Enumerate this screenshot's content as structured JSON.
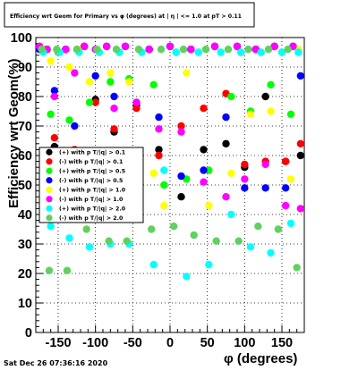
{
  "title": "Efficiency wrt Geom for Primary vs φ (degrees) at | η | <= 1.0 at pT > 0.11",
  "timestamp": "Sat Dec 26 07:36:16 2020",
  "chart_data": {
    "type": "scatter",
    "title": "Efficiency wrt Geom for Primary vs φ (degrees) at | η | <= 1.0 at pT > 0.11",
    "xlabel": "φ (degrees)",
    "ylabel": "Efficiency wrt Geom(%)",
    "xlim": [
      -180,
      180
    ],
    "ylim": [
      0,
      100
    ],
    "xticks": [
      -150,
      -100,
      -50,
      0,
      50,
      100,
      150
    ],
    "xtick_labels": [
      "-150",
      "-100",
      "-50",
      "0",
      "50",
      "100",
      "150"
    ],
    "yticks": [
      0,
      10,
      20,
      30,
      40,
      50,
      60,
      70,
      80,
      90,
      100
    ],
    "ytick_labels": [
      "0",
      "10",
      "20",
      "30",
      "40",
      "50",
      "60",
      "70",
      "80",
      "90",
      "100"
    ],
    "grid": true,
    "legend_position": "left-middle",
    "series": [
      {
        "name": "(+) with p T/|q| > 0.1",
        "color": "#000000",
        "x": [
          -175,
          -165,
          -155,
          -140,
          -128,
          -115,
          -100,
          -85,
          -75,
          -60,
          -45,
          -28,
          -15,
          0,
          15,
          28,
          45,
          60,
          75,
          90,
          100,
          115,
          128,
          140,
          155,
          165,
          175
        ],
        "y": [
          97,
          96,
          63,
          96,
          58,
          97,
          79,
          97,
          68,
          97,
          77,
          96,
          62,
          97,
          46,
          96,
          62,
          97,
          64,
          97,
          56,
          96,
          80,
          97,
          58,
          97,
          60
        ]
      },
      {
        "name": "(-) with p T/|q| > 0.1",
        "color": "#ff0000",
        "x": [
          -175,
          -165,
          -155,
          -140,
          -128,
          -115,
          -100,
          -85,
          -75,
          -60,
          -45,
          -28,
          -15,
          0,
          15,
          28,
          45,
          60,
          75,
          90,
          100,
          115,
          128,
          140,
          155,
          165,
          175
        ],
        "y": [
          97,
          96,
          66,
          96,
          62,
          97,
          78,
          97,
          69,
          97,
          76,
          96,
          60,
          97,
          70,
          96,
          76,
          97,
          81,
          97,
          57,
          96,
          58,
          97,
          58,
          97,
          64
        ]
      },
      {
        "name": "(+) with p T/|q| > 0.5",
        "color": "#00ff00",
        "x": [
          -170,
          -160,
          -150,
          -135,
          -122,
          -108,
          -95,
          -80,
          -68,
          -55,
          -38,
          -22,
          -8,
          8,
          22,
          38,
          52,
          68,
          82,
          95,
          108,
          122,
          135,
          150,
          162,
          172
        ],
        "y": [
          96,
          74,
          95,
          72,
          96,
          78,
          95,
          85,
          95,
          86,
          95,
          84,
          50,
          95,
          52,
          95,
          55,
          95,
          80,
          95,
          75,
          95,
          84,
          95,
          74,
          96
        ]
      },
      {
        "name": "(-) with p T/|q| > 0.5",
        "color": "#0000ff",
        "x": [
          -175,
          -165,
          -155,
          -140,
          -128,
          -115,
          -100,
          -85,
          -75,
          -60,
          -45,
          -28,
          -15,
          0,
          15,
          28,
          45,
          60,
          75,
          90,
          100,
          115,
          128,
          140,
          155,
          165,
          175
        ],
        "y": [
          96,
          96,
          82,
          96,
          70,
          97,
          87,
          97,
          80,
          97,
          78,
          96,
          73,
          97,
          53,
          96,
          55,
          97,
          73,
          97,
          49,
          96,
          49,
          97,
          49,
          97,
          87
        ]
      },
      {
        "name": "(+) with p T/|q| > 1.0",
        "color": "#ffff00",
        "x": [
          -170,
          -160,
          -148,
          -135,
          -122,
          -108,
          -95,
          -80,
          -68,
          -55,
          -38,
          -22,
          -8,
          8,
          22,
          38,
          52,
          68,
          82,
          95,
          108,
          122,
          135,
          150,
          162,
          172
        ],
        "y": [
          96,
          92,
          95,
          90,
          96,
          85,
          95,
          88,
          95,
          85,
          95,
          54,
          43,
          95,
          88,
          95,
          43,
          95,
          54,
          95,
          74,
          95,
          75,
          95,
          52,
          96
        ]
      },
      {
        "name": "(-) with p T/|q| > 1.0",
        "color": "#ff00ff",
        "x": [
          -175,
          -165,
          -155,
          -140,
          -128,
          -115,
          -100,
          -85,
          -75,
          -60,
          -45,
          -28,
          -15,
          0,
          15,
          28,
          45,
          60,
          75,
          90,
          100,
          115,
          128,
          140,
          155,
          165,
          175
        ],
        "y": [
          97,
          96,
          80,
          96,
          88,
          97,
          96,
          97,
          76,
          97,
          78,
          96,
          69,
          97,
          68,
          96,
          51,
          97,
          46,
          97,
          52,
          96,
          57,
          97,
          43,
          97,
          42
        ]
      },
      {
        "name": "(+) with p T/|q| > 2.0",
        "color": "#00ffff",
        "x": [
          -170,
          -160,
          -148,
          -135,
          -122,
          -108,
          -95,
          -80,
          -68,
          -55,
          -38,
          -22,
          -8,
          8,
          22,
          38,
          52,
          68,
          82,
          95,
          108,
          122,
          135,
          150,
          162,
          172
        ],
        "y": [
          95,
          36,
          95,
          32,
          95,
          29,
          95,
          30,
          95,
          30,
          95,
          23,
          55,
          95,
          19,
          95,
          23,
          95,
          40,
          95,
          29,
          95,
          27,
          95,
          37,
          95
        ]
      },
      {
        "name": "(-) with p T/|q| > 2.0",
        "color": "#60d060",
        "x": [
          -172,
          -162,
          -152,
          -138,
          -125,
          -112,
          -98,
          -82,
          -72,
          -58,
          -42,
          -25,
          -12,
          5,
          18,
          32,
          48,
          62,
          78,
          92,
          105,
          118,
          132,
          145,
          158,
          170
        ],
        "y": [
          96,
          21,
          96,
          21,
          96,
          35,
          96,
          31,
          96,
          31,
          96,
          35,
          96,
          36,
          96,
          33,
          96,
          31,
          96,
          31,
          96,
          36,
          96,
          35,
          96,
          22
        ]
      }
    ]
  }
}
